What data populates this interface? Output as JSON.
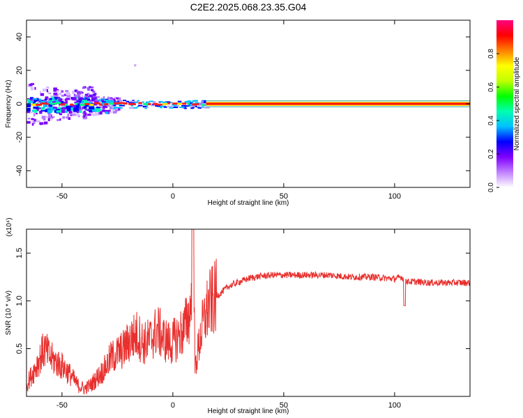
{
  "title": "C2E2.2025.068.23.35.G04",
  "colors": {
    "line": "#e8302e",
    "axis": "#000000",
    "background": "#ffffff"
  },
  "chart_data": [
    {
      "type": "heatmap",
      "name": "spectrogram",
      "xlabel": "Height of straight line (km)",
      "ylabel": "Frequency (Hz)",
      "xlim": [
        -66,
        134
      ],
      "ylim": [
        -50,
        50
      ],
      "x_ticks": [
        -50,
        0,
        50,
        100
      ],
      "y_ticks": [
        -40,
        -20,
        0,
        20,
        40
      ],
      "colorbar": {
        "label": "Normalized spectral amplitude",
        "range": [
          0,
          1
        ],
        "ticks": [
          "0.0",
          "0.2",
          "0.4",
          "0.6",
          "0.8"
        ],
        "colormap": [
          "#ffffff",
          "#c080ff",
          "#8000ff",
          "#0000ff",
          "#00c0ff",
          "#00ffb0",
          "#00ff00",
          "#c0ff00",
          "#ffff00",
          "#ff8000",
          "#ff0000",
          "#ff0080"
        ]
      },
      "main_band_frequency_hz": 0,
      "note": "Noisy broadband returns at low heights (-66 to -30 km), narrow strong carrier line near 0 Hz above ~15 km."
    },
    {
      "type": "line",
      "name": "snr",
      "xlabel": "Height of straight line (km)",
      "ylabel": "SNR (10 * v/v)",
      "y_multiplier": "(x10⁴)",
      "xlim": [
        -66,
        134
      ],
      "ylim": [
        0,
        1.75
      ],
      "x_ticks": [
        -50,
        0,
        50,
        100
      ],
      "y_ticks": [
        "0.5",
        "1.0",
        "1.5"
      ],
      "series": [
        {
          "name": "SNR",
          "x": [
            -66,
            -62,
            -58,
            -55,
            -52,
            -49,
            -46,
            -43,
            -40,
            -37,
            -34,
            -31,
            -28,
            -25,
            -22,
            -19,
            -16,
            -13,
            -10,
            -7,
            -4,
            -1,
            2,
            5,
            8,
            9,
            10,
            13,
            16,
            20,
            25,
            30,
            35,
            40,
            45,
            50,
            55,
            60,
            65,
            70,
            75,
            80,
            85,
            90,
            95,
            100,
            103,
            106,
            110,
            115,
            120,
            125,
            130,
            134
          ],
          "y": [
            0.12,
            0.3,
            0.5,
            0.4,
            0.35,
            0.3,
            0.22,
            0.12,
            0.08,
            0.12,
            0.2,
            0.28,
            0.4,
            0.45,
            0.5,
            0.6,
            0.65,
            0.55,
            0.6,
            0.7,
            0.6,
            0.55,
            0.62,
            0.7,
            0.9,
            1.7,
            0.3,
            0.7,
            0.95,
            1.05,
            1.15,
            1.2,
            1.24,
            1.26,
            1.27,
            1.27,
            1.27,
            1.27,
            1.27,
            1.27,
            1.26,
            1.25,
            1.25,
            1.25,
            1.24,
            1.23,
            1.25,
            1.2,
            1.2,
            1.19,
            1.19,
            1.19,
            1.19,
            1.19
          ]
        }
      ]
    }
  ]
}
